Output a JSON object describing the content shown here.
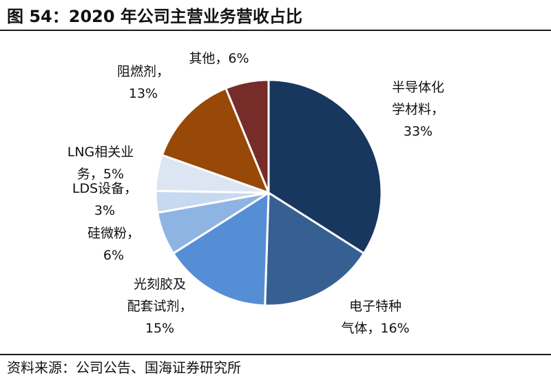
{
  "header": {
    "title": "图 54：2020 年公司主营业务营收占比"
  },
  "footer": {
    "source": "资料来源：公司公告、国海证券研究所"
  },
  "chart_data": {
    "type": "pie",
    "title": "",
    "unit": "%",
    "legend": "none",
    "start": "12 o'clock",
    "direction": "clockwise",
    "slices": [
      {
        "name": "半导体化学材料",
        "value": 33,
        "label_lines": [
          "半导体化",
          "学材料，",
          "33%"
        ],
        "color": "#17375e"
      },
      {
        "name": "电子特种气体",
        "value": 16,
        "label_lines": [
          "电子特种",
          "气体，16%"
        ],
        "color": "#376092"
      },
      {
        "name": "光刻胶及配套试剂",
        "value": 15,
        "label_lines": [
          "光刻胶及",
          "配套试剂，",
          "15%"
        ],
        "color": "#558ed5"
      },
      {
        "name": "硅微粉",
        "value": 6,
        "label_lines": [
          "硅微粉，",
          "6%"
        ],
        "color": "#8eb4e3"
      },
      {
        "name": "LDS设备",
        "value": 3,
        "label_lines": [
          "LDS设备，",
          "3%"
        ],
        "color": "#c6d9f1"
      },
      {
        "name": "LNG相关业务",
        "value": 5,
        "label_lines": [
          "LNG相关业",
          "务，5%"
        ],
        "color": "#dce6f2"
      },
      {
        "name": "阻燃剂",
        "value": 13,
        "label_lines": [
          "阻燃剂，",
          "13%"
        ],
        "color": "#984807"
      },
      {
        "name": "其他",
        "value": 6,
        "label_lines": [
          "其他，6%"
        ],
        "color": "#772c2a"
      }
    ]
  }
}
